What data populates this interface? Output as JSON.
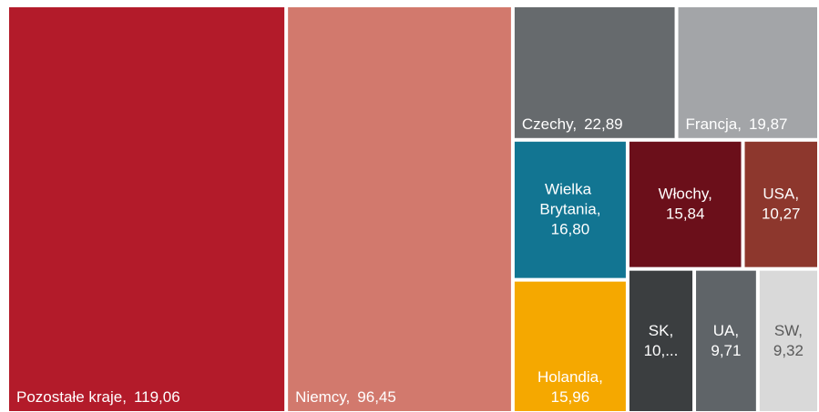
{
  "chart_data": {
    "type": "treemap",
    "categories": [
      "Pozostałe kraje,",
      "Niemcy,",
      "Czechy,",
      "Francja,",
      "Wielka Brytania,",
      "Włochy,",
      "USA,",
      "Holandia,",
      "SK,",
      "UA,",
      "SW,"
    ],
    "values": [
      119.06,
      96.45,
      22.89,
      19.87,
      16.8,
      15.84,
      10.27,
      15.96,
      10.2,
      9.71,
      9.32
    ],
    "value_labels": [
      "119,06",
      "96,45",
      "22,89",
      "19,87",
      "16,80",
      "15,84",
      "10,27",
      "15,96",
      "10,...",
      "9,71",
      "9,32"
    ],
    "colors": [
      "#b31b2a",
      "#d2796d",
      "#666a6d",
      "#a3a5a8",
      "#127592",
      "#6b0f1a",
      "#8d372d",
      "#f5a800",
      "#3b3e40",
      "#5f6468",
      "#d9d9d9"
    ]
  }
}
